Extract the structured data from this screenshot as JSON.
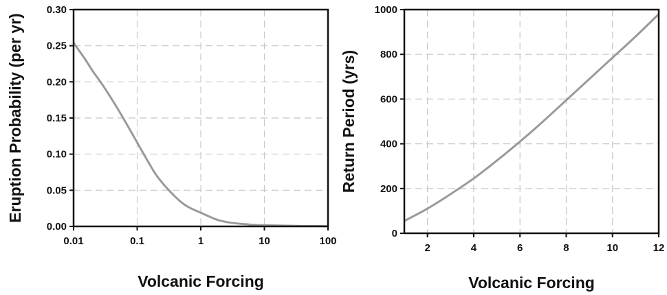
{
  "chart_data": [
    {
      "type": "line",
      "title": "",
      "xlabel": "Volcanic Forcing",
      "ylabel": "Eruption Probability (per yr)",
      "xscale": "log",
      "xlim": [
        0.01,
        100
      ],
      "ylim": [
        0,
        0.3
      ],
      "xticks": [
        "0.01",
        "0.1",
        "1",
        "10",
        "100"
      ],
      "yticks": [
        "0.00",
        "0.05",
        "0.10",
        "0.15",
        "0.20",
        "0.25",
        "0.30"
      ],
      "grid": true,
      "line_color": "#9a9a9a",
      "series": [
        {
          "x": [
            0.01,
            0.015,
            0.02,
            0.03,
            0.05,
            0.07,
            0.1,
            0.15,
            0.2,
            0.3,
            0.5,
            0.7,
            1,
            1.5,
            2,
            3,
            5,
            7,
            10,
            20,
            50,
            100
          ],
          "y": [
            0.254,
            0.232,
            0.215,
            0.193,
            0.162,
            0.14,
            0.116,
            0.089,
            0.071,
            0.052,
            0.033,
            0.025,
            0.019,
            0.012,
            0.008,
            0.005,
            0.003,
            0.002,
            0.0015,
            0.001,
            0.0005,
            0.0003
          ]
        }
      ]
    },
    {
      "type": "line",
      "title": "",
      "xlabel": "Volcanic Forcing",
      "ylabel": "Return Period (yrs)",
      "xlim": [
        1,
        12
      ],
      "ylim": [
        0,
        1000
      ],
      "xticks": [
        "2",
        "4",
        "6",
        "8",
        "10",
        "12"
      ],
      "yticks": [
        "0",
        "200",
        "400",
        "600",
        "800",
        "1000"
      ],
      "grid": true,
      "line_color": "#9a9a9a",
      "series": [
        {
          "x": [
            1,
            2,
            3,
            4,
            5,
            6,
            7,
            8,
            9,
            10,
            11,
            12
          ],
          "y": [
            55,
            110,
            175,
            245,
            325,
            410,
            500,
            595,
            690,
            785,
            880,
            980
          ]
        }
      ]
    }
  ]
}
